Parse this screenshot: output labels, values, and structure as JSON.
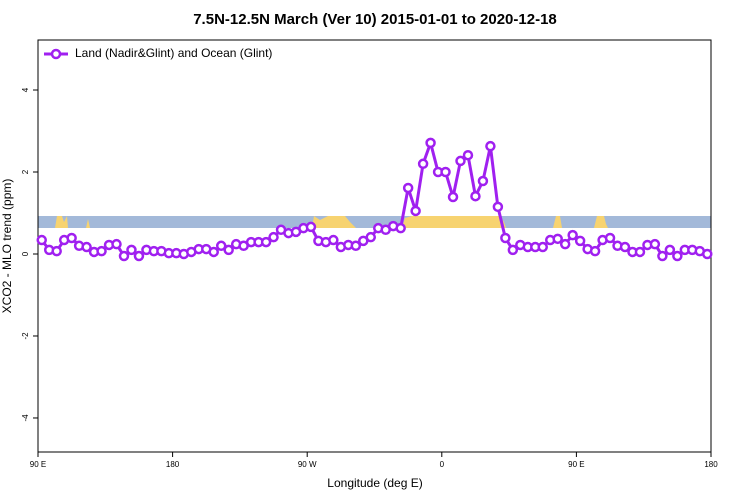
{
  "chart_data": {
    "type": "line",
    "title": "7.5N-12.5N March (Ver 10)   2015-01-01 to 2020-12-18",
    "x_label": "Longitude (deg E)",
    "y_label": "XCO2 - MLO trend (ppm)",
    "xlim": [
      90,
      540
    ],
    "ylim": [
      -4.83,
      5.22
    ],
    "xticks": [
      {
        "value": 90,
        "label": "90 E"
      },
      180,
      {
        "value": 270,
        "label": "90 W"
      },
      {
        "value": 360,
        "label": "0"
      },
      {
        "value": 450,
        "label": "90 E"
      },
      {
        "value": 540,
        "label": "180"
      }
    ],
    "yticks": [
      4,
      2,
      0,
      -2,
      -4
    ],
    "legend": "upper left",
    "x": [
      92.5,
      97.5,
      102.5,
      107.5,
      112.5,
      117.5,
      122.5,
      127.5,
      132.5,
      137.5,
      142.5,
      147.5,
      152.5,
      157.5,
      162.5,
      167.5,
      172.5,
      177.5,
      182.5,
      187.5,
      192.5,
      197.5,
      202.5,
      207.5,
      212.5,
      217.5,
      222.5,
      227.5,
      232.5,
      237.5,
      242.5,
      247.5,
      252.5,
      257.5,
      262.5,
      267.5,
      272.5,
      277.5,
      282.5,
      287.5,
      292.5,
      297.5,
      302.5,
      307.5,
      312.5,
      317.5,
      322.5,
      327.5,
      332.5,
      337.5,
      342.5,
      347.5,
      352.5,
      357.5,
      362.5,
      367.5,
      372.5,
      377.5,
      382.5,
      387.5,
      392.5,
      397.5,
      402.5,
      407.5,
      412.5,
      417.5,
      422.5,
      427.5,
      432.5,
      437.5,
      442.5,
      447.5,
      452.5,
      457.5,
      462.5,
      467.5,
      472.5,
      477.5,
      482.5,
      487.5,
      492.5,
      497.5,
      502.5,
      507.5,
      512.5,
      517.5,
      522.5,
      527.5,
      532.5,
      537.5
    ],
    "series": [
      {
        "name": "Land (Nadir&Glint) and Ocean (Glint)",
        "color": "#a020f0",
        "values": [
          0.34,
          0.1,
          0.07,
          0.34,
          0.39,
          0.2,
          0.17,
          0.05,
          0.07,
          0.22,
          0.24,
          -0.05,
          0.1,
          -0.05,
          0.1,
          0.07,
          0.07,
          0.02,
          0.02,
          0,
          0.05,
          0.12,
          0.12,
          0.05,
          0.2,
          0.1,
          0.24,
          0.2,
          0.29,
          0.29,
          0.29,
          0.41,
          0.59,
          0.51,
          0.54,
          0.63,
          0.66,
          0.32,
          0.29,
          0.34,
          0.17,
          0.22,
          0.2,
          0.32,
          0.41,
          0.63,
          0.59,
          0.68,
          0.63,
          1.61,
          1.05,
          2.2,
          2.71,
          2.0,
          2.0,
          1.39,
          2.27,
          2.41,
          1.41,
          1.78,
          2.63,
          1.15,
          0.39,
          0.1,
          0.22,
          0.17,
          0.17,
          0.17,
          0.34,
          0.37,
          0.24,
          0.46,
          0.32,
          0.12,
          0.07,
          0.34,
          0.39,
          0.2,
          0.17,
          0.05,
          0.05,
          0.22,
          0.24,
          -0.05,
          0.1,
          -0.05,
          0.1,
          0.1,
          0.07,
          0
        ]
      }
    ]
  }
}
